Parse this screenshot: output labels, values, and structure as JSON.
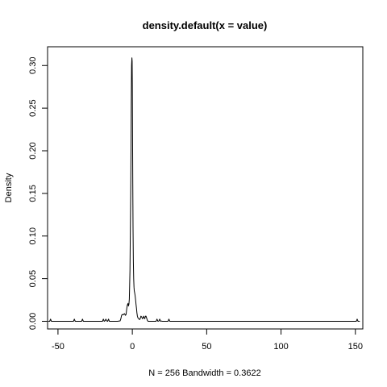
{
  "chart_data": {
    "type": "line",
    "title": "density.default(x = value)",
    "xlabel": "N = 256   Bandwidth = 0.3622",
    "ylabel": "Density",
    "xlim": [
      -57,
      155
    ],
    "ylim": [
      -0.009,
      0.322
    ],
    "x_ticks": [
      -50,
      0,
      50,
      100,
      150
    ],
    "y_ticks": [
      0.0,
      0.05,
      0.1,
      0.15,
      0.2,
      0.25,
      0.3
    ],
    "x_tick_labels": [
      "-50",
      "0",
      "50",
      "100",
      "150"
    ],
    "y_tick_labels": [
      "0.00",
      "0.05",
      "0.10",
      "0.15",
      "0.20",
      "0.25",
      "0.30"
    ],
    "grid": false,
    "series": [
      {
        "color": "#000000",
        "x": [
          -56.5,
          -55.6,
          -55.0,
          -54.4,
          -53.5,
          -41.0,
          -39.6,
          -39.0,
          -38.4,
          -37.0,
          -35.0,
          -34.1,
          -33.5,
          -32.9,
          -32.0,
          -21.0,
          -20.1,
          -19.5,
          -18.9,
          -18.4,
          -17.8,
          -17.2,
          -16.6,
          -16.0,
          -15.4,
          -14.0,
          -10.0,
          -8.2,
          -7.7,
          -7.2,
          -6.7,
          -6.2,
          -5.7,
          -5.2,
          -4.7,
          -4.2,
          -3.8,
          -3.4,
          -2.9,
          -2.6,
          -2.3,
          -2.0,
          -1.8,
          -1.6,
          -1.5,
          -1.3,
          -1.1,
          -0.9,
          -0.7,
          -0.5,
          -0.3,
          -0.1,
          0.0,
          0.1,
          0.2,
          0.3,
          0.5,
          0.7,
          0.9,
          1.1,
          1.3,
          1.6,
          1.9,
          2.2,
          2.5,
          2.8,
          3.1,
          3.4,
          3.8,
          4.3,
          4.8,
          5.3,
          5.8,
          6.3,
          6.8,
          7.2,
          7.6,
          8.0,
          8.4,
          8.8,
          9.2,
          9.6,
          10.1,
          10.6,
          11.1,
          12.0,
          15.0,
          16.0,
          16.6,
          17.2,
          17.8,
          18.4,
          19.0,
          19.6,
          20.2,
          21.0,
          23.0,
          24.0,
          24.6,
          25.2,
          26.0,
          149.0,
          150.6,
          151.2,
          151.8,
          153.0
        ],
        "y": [
          0.0,
          0.0,
          0.0025,
          0.0,
          0.0,
          0.0,
          0.0,
          0.0025,
          0.0,
          0.0,
          0.0,
          0.0,
          0.0025,
          0.0,
          0.0,
          0.0,
          0.0,
          0.0025,
          0.0,
          0.0005,
          0.0025,
          0.0005,
          0.0,
          0.0025,
          0.0,
          0.0,
          0.0,
          0.0005,
          0.003,
          0.007,
          0.008,
          0.0075,
          0.0085,
          0.009,
          0.007,
          0.008,
          0.014,
          0.019,
          0.021,
          0.018,
          0.02,
          0.026,
          0.042,
          0.06,
          0.08,
          0.11,
          0.15,
          0.2,
          0.255,
          0.3,
          0.309,
          0.305,
          0.28,
          0.24,
          0.2,
          0.16,
          0.11,
          0.07,
          0.05,
          0.04,
          0.036,
          0.033,
          0.03,
          0.025,
          0.02,
          0.015,
          0.01,
          0.006,
          0.004,
          0.003,
          0.002,
          0.003,
          0.006,
          0.005,
          0.003,
          0.004,
          0.006,
          0.004,
          0.003,
          0.006,
          0.006,
          0.004,
          0.001,
          0.0,
          0.0,
          0.0,
          0.0,
          0.0,
          0.0025,
          0.0,
          0.0003,
          0.0025,
          0.0,
          0.0003,
          0.0,
          0.0,
          0.0,
          0.0,
          0.0025,
          0.0,
          0.0,
          0.0,
          0.0,
          0.0025,
          0.0,
          0.0
        ]
      }
    ]
  }
}
